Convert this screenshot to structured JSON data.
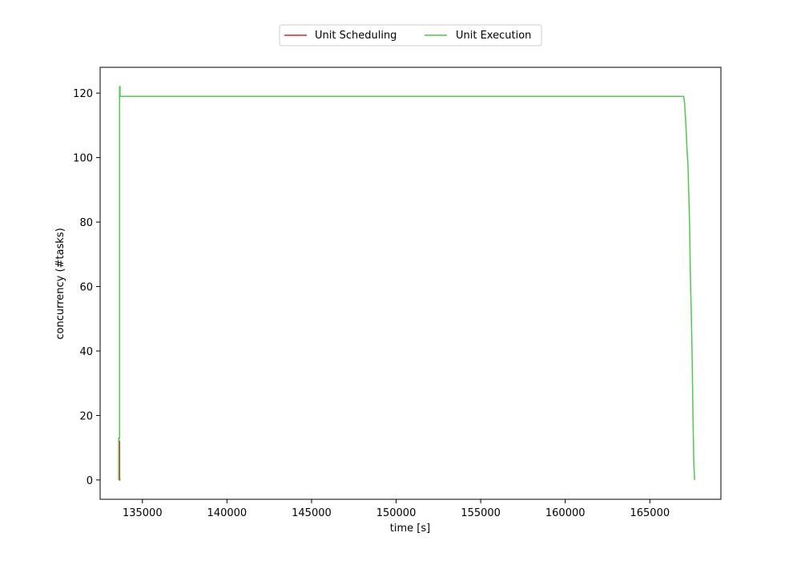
{
  "chart_data": {
    "type": "line",
    "xlabel": "time [s]",
    "ylabel": "concurrency (#tasks)",
    "xlim": [
      132500,
      169200
    ],
    "ylim": [
      -6,
      128
    ],
    "xticks": [
      135000,
      140000,
      145000,
      150000,
      155000,
      160000,
      165000
    ],
    "xtick_labels": [
      "135000",
      "140000",
      "145000",
      "150000",
      "155000",
      "160000",
      "165000"
    ],
    "yticks": [
      0,
      20,
      40,
      60,
      80,
      100,
      120
    ],
    "ytick_labels": [
      "0",
      "20",
      "40",
      "60",
      "80",
      "100",
      "120"
    ],
    "grid": false,
    "legend_position": "top-center, above plot",
    "series": [
      {
        "name": "Unit Scheduling",
        "color": "#d62728",
        "step": true,
        "points": [
          [
            133600,
            0
          ],
          [
            133600,
            12
          ],
          [
            133650,
            12
          ],
          [
            133650,
            0
          ],
          [
            133700,
            0
          ]
        ]
      },
      {
        "name": "Unit Execution",
        "color": "#4ccc4c",
        "step": true,
        "points": [
          [
            133600,
            0
          ],
          [
            133600,
            13
          ],
          [
            133650,
            13
          ],
          [
            133650,
            122
          ],
          [
            133680,
            122
          ],
          [
            133680,
            119
          ],
          [
            167000,
            119
          ],
          [
            167050,
            117
          ],
          [
            167100,
            113
          ],
          [
            167150,
            108
          ],
          [
            167200,
            102
          ],
          [
            167250,
            98
          ],
          [
            167300,
            89
          ],
          [
            167350,
            79
          ],
          [
            167400,
            62
          ],
          [
            167450,
            52
          ],
          [
            167500,
            38
          ],
          [
            167550,
            19
          ],
          [
            167600,
            5
          ],
          [
            167650,
            0
          ]
        ]
      }
    ]
  }
}
